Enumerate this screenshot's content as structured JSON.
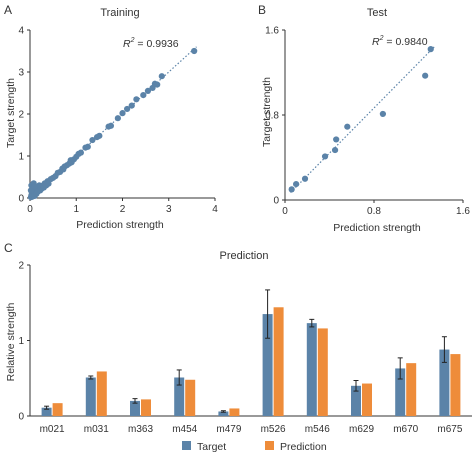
{
  "colors": {
    "target": "#5b83a8",
    "prediction": "#ee8c3a",
    "axis": "#333333",
    "fit": "#5b83a8"
  },
  "chart_data": [
    {
      "panel": "A",
      "type": "scatter",
      "title": "Training",
      "xlabel": "Prediction strength",
      "ylabel": "Target strength",
      "annotation": {
        "symbol": "R",
        "sup": "2",
        "text": " = 0.9936"
      },
      "xlim": [
        0,
        4
      ],
      "ylim": [
        0,
        4
      ],
      "xticks": [
        0,
        1,
        2,
        3,
        4
      ],
      "yticks": [
        0,
        1,
        2,
        3,
        4
      ],
      "fit_line": [
        [
          0,
          0
        ],
        [
          3.6,
          3.6
        ]
      ],
      "points": [
        [
          0.02,
          0.02
        ],
        [
          0.03,
          0.06
        ],
        [
          0.05,
          0.03
        ],
        [
          0.04,
          0.12
        ],
        [
          0.06,
          0.08
        ],
        [
          0.08,
          0.15
        ],
        [
          0.1,
          0.05
        ],
        [
          0.12,
          0.2
        ],
        [
          0.14,
          0.1
        ],
        [
          0.15,
          0.25
        ],
        [
          0.17,
          0.15
        ],
        [
          0.2,
          0.3
        ],
        [
          0.22,
          0.18
        ],
        [
          0.25,
          0.22
        ],
        [
          0.28,
          0.3
        ],
        [
          0.3,
          0.25
        ],
        [
          0.32,
          0.35
        ],
        [
          0.35,
          0.3
        ],
        [
          0.38,
          0.4
        ],
        [
          0.4,
          0.34
        ],
        [
          0.03,
          0.3
        ],
        [
          0.05,
          0.22
        ],
        [
          0.02,
          0.18
        ],
        [
          0.08,
          0.35
        ],
        [
          0.1,
          0.28
        ],
        [
          0.45,
          0.45
        ],
        [
          0.5,
          0.48
        ],
        [
          0.55,
          0.52
        ],
        [
          0.6,
          0.6
        ],
        [
          0.65,
          0.62
        ],
        [
          0.7,
          0.7
        ],
        [
          0.72,
          0.68
        ],
        [
          0.75,
          0.75
        ],
        [
          0.8,
          0.78
        ],
        [
          0.85,
          0.82
        ],
        [
          0.88,
          0.9
        ],
        [
          0.9,
          0.85
        ],
        [
          0.95,
          0.92
        ],
        [
          1.0,
          0.98
        ],
        [
          1.05,
          1.05
        ],
        [
          1.1,
          1.08
        ],
        [
          1.2,
          1.2
        ],
        [
          1.25,
          1.22
        ],
        [
          1.35,
          1.38
        ],
        [
          1.45,
          1.45
        ],
        [
          1.5,
          1.48
        ],
        [
          1.7,
          1.7
        ],
        [
          1.75,
          1.72
        ],
        [
          1.9,
          1.9
        ],
        [
          2.0,
          2.02
        ],
        [
          2.1,
          2.12
        ],
        [
          2.2,
          2.2
        ],
        [
          2.3,
          2.35
        ],
        [
          2.45,
          2.45
        ],
        [
          2.55,
          2.55
        ],
        [
          2.65,
          2.62
        ],
        [
          2.7,
          2.72
        ],
        [
          2.75,
          2.7
        ],
        [
          2.85,
          2.9
        ],
        [
          3.55,
          3.5
        ]
      ]
    },
    {
      "panel": "B",
      "type": "scatter",
      "title": "Test",
      "xlabel": "Prediction strength",
      "ylabel": "Target strength",
      "annotation": {
        "symbol": "R",
        "sup": "2",
        "text": " = 0.9840"
      },
      "xlim": [
        0,
        1.6
      ],
      "ylim": [
        0,
        1.6
      ],
      "xticks": [
        0,
        0.8,
        1.6
      ],
      "yticks": [
        0,
        0.8,
        1.6
      ],
      "xticklabels": [
        "0",
        "0.8",
        "1.6"
      ],
      "yticklabels": [
        "0",
        "0.8",
        "1.6"
      ],
      "fit_line": [
        [
          0.05,
          0.07
        ],
        [
          1.35,
          1.45
        ]
      ],
      "points": [
        [
          0.06,
          0.1
        ],
        [
          0.1,
          0.15
        ],
        [
          0.18,
          0.2
        ],
        [
          0.36,
          0.41
        ],
        [
          0.45,
          0.47
        ],
        [
          0.46,
          0.57
        ],
        [
          0.56,
          0.69
        ],
        [
          0.88,
          0.81
        ],
        [
          1.26,
          1.17
        ],
        [
          1.31,
          1.42
        ]
      ]
    },
    {
      "panel": "C",
      "type": "bar",
      "title": "Prediction",
      "xlabel": "",
      "ylabel": "Relative strength",
      "ylim": [
        0,
        2
      ],
      "yticks": [
        0,
        1,
        2
      ],
      "legend_position": "bottom",
      "categories": [
        "m021",
        "m031",
        "m363",
        "m454",
        "m479",
        "m526",
        "m546",
        "m629",
        "m670",
        "m675"
      ],
      "series": [
        {
          "name": "Target",
          "values": [
            0.11,
            0.51,
            0.2,
            0.51,
            0.06,
            1.35,
            1.23,
            0.4,
            0.63,
            0.88
          ],
          "errors": [
            0.02,
            0.02,
            0.03,
            0.1,
            0.01,
            0.32,
            0.05,
            0.07,
            0.14,
            0.17
          ]
        },
        {
          "name": "Prediction",
          "values": [
            0.17,
            0.59,
            0.22,
            0.48,
            0.1,
            1.44,
            1.16,
            0.43,
            0.7,
            0.82
          ]
        }
      ]
    }
  ]
}
